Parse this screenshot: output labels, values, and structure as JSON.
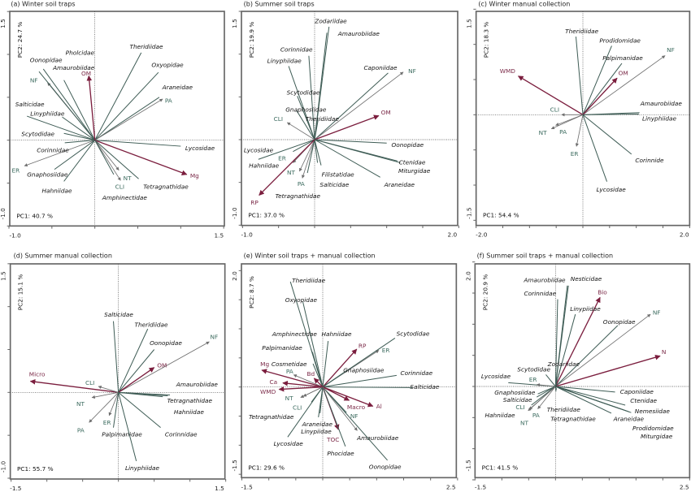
{
  "colors": {
    "species": "#3e5c55",
    "environmental": "#6e6e6e",
    "environmental_label": "#3c6b5f",
    "soil": "#7b1e3e",
    "soil_label": "#7b2a48"
  },
  "chart_data": [
    {
      "type": "biplot",
      "title": "(a) Winter soil traps",
      "pc1_label": "PC1: 40.7 %",
      "pc2_label": "PC2: 24.7 %",
      "xlim": [
        -1.0,
        1.5
      ],
      "ylim": [
        -1.0,
        1.5
      ],
      "x_tick_labels": [
        "-1.0",
        "1.5"
      ],
      "y_tick_labels": [
        "-1.0",
        "1.5"
      ],
      "arrows": [
        {
          "label": "Theridiidae",
          "type": "species",
          "pc1": 0.54,
          "pc2": 1.02
        },
        {
          "label": "Oxyopidae",
          "type": "species",
          "pc1": 0.74,
          "pc2": 0.79
        },
        {
          "label": "Araneidae",
          "type": "species",
          "pc1": 0.75,
          "pc2": 0.5
        },
        {
          "label": "PA",
          "type": "environmental",
          "pc1": 0.79,
          "pc2": 0.48
        },
        {
          "label": "Lycosidae",
          "type": "species",
          "pc1": 1.0,
          "pc2": -0.07
        },
        {
          "label": "Mg",
          "type": "soil",
          "pc1": 1.07,
          "pc2": -0.4
        },
        {
          "label": "Tetragnathidae",
          "type": "species",
          "pc1": 0.51,
          "pc2": -0.45
        },
        {
          "label": "NT",
          "type": "environmental",
          "pc1": 0.3,
          "pc2": -0.47
        },
        {
          "label": "CLI",
          "type": "environmental",
          "pc1": 0.28,
          "pc2": -0.35
        },
        {
          "label": "Amphinectidae",
          "type": "species",
          "pc1": 0.22,
          "pc2": -0.4
        },
        {
          "label": "Hahniidae",
          "type": "species",
          "pc1": -0.36,
          "pc2": -0.48
        },
        {
          "label": "Gnaphosiidae",
          "type": "species",
          "pc1": -0.47,
          "pc2": -0.34
        },
        {
          "label": "ER",
          "type": "environmental",
          "pc1": -0.82,
          "pc2": -0.3
        },
        {
          "label": "Corinnidae",
          "type": "species",
          "pc1": -0.35,
          "pc2": -0.03
        },
        {
          "label": "Scytodidae",
          "type": "species",
          "pc1": -0.36,
          "pc2": 0.08
        },
        {
          "label": "Linyphiidae",
          "type": "species",
          "pc1": -0.38,
          "pc2": 0.27
        },
        {
          "label": "Salticidae",
          "type": "species",
          "pc1": -0.79,
          "pc2": 0.28
        },
        {
          "label": "NF",
          "type": "environmental",
          "pc1": -0.55,
          "pc2": 0.67
        },
        {
          "label": "Oonopidae",
          "type": "species",
          "pc1": -0.65,
          "pc2": 0.8
        },
        {
          "label": "Amaurobiidae",
          "type": "species",
          "pc1": -0.6,
          "pc2": 0.83
        },
        {
          "label": "Pholcidae",
          "type": "species",
          "pc1": -0.36,
          "pc2": 0.7
        },
        {
          "label": "OM",
          "type": "soil",
          "pc1": -0.07,
          "pc2": 0.75
        }
      ]
    },
    {
      "type": "biplot",
      "title": "(b) Summer soil traps",
      "pc1_label": "PC1: 37.0 %",
      "pc2_label": "PC2: 19.9 %",
      "xlim": [
        -1.0,
        2.0
      ],
      "ylim": [
        -1.0,
        1.5
      ],
      "x_tick_labels": [
        "-1.0",
        "2.0"
      ],
      "y_tick_labels": [
        "-1.0",
        "1.5"
      ],
      "arrows": [
        {
          "label": "Zodariidae",
          "type": "species",
          "pc1": 0.2,
          "pc2": 1.32
        },
        {
          "label": "Amaurobiidae",
          "type": "species",
          "pc1": 0.17,
          "pc2": 1.25
        },
        {
          "label": "Corinnidae",
          "type": "species",
          "pc1": -0.08,
          "pc2": 0.98
        },
        {
          "label": "Linyphiidae",
          "type": "species",
          "pc1": -0.36,
          "pc2": 0.86
        },
        {
          "label": "Caponiidae",
          "type": "species",
          "pc1": 1.02,
          "pc2": 0.78
        },
        {
          "label": "NF",
          "type": "environmental",
          "pc1": 1.23,
          "pc2": 0.79
        },
        {
          "label": "Scytodidae",
          "type": "species",
          "pc1": -0.24,
          "pc2": 0.51
        },
        {
          "label": "Gnaphosiidae",
          "type": "species",
          "pc1": -0.25,
          "pc2": 0.34
        },
        {
          "label": "Theridiidae",
          "type": "species",
          "pc1": 0.05,
          "pc2": 0.24
        },
        {
          "label": "CLI",
          "type": "environmental",
          "pc1": -0.38,
          "pc2": 0.2
        },
        {
          "label": "OM",
          "type": "soil",
          "pc1": 0.89,
          "pc2": 0.28
        },
        {
          "label": "Oonopidae",
          "type": "species",
          "pc1": 1.0,
          "pc2": -0.04
        },
        {
          "label": "Ctenidae",
          "type": "species",
          "pc1": 1.19,
          "pc2": -0.27
        },
        {
          "label": "Miturgidae",
          "type": "species",
          "pc1": 1.15,
          "pc2": -0.25
        },
        {
          "label": "Araneidae",
          "type": "species",
          "pc1": 0.91,
          "pc2": -0.44
        },
        {
          "label": "Filistatidae",
          "type": "species",
          "pc1": 0.09,
          "pc2": -0.3
        },
        {
          "label": "Salticidae",
          "type": "species",
          "pc1": 0.04,
          "pc2": -0.27
        },
        {
          "label": "PA",
          "type": "environmental",
          "pc1": -0.17,
          "pc2": -0.45
        },
        {
          "label": "NT",
          "type": "environmental",
          "pc1": -0.21,
          "pc2": -0.37
        },
        {
          "label": "ER",
          "type": "environmental",
          "pc1": -0.3,
          "pc2": -0.27
        },
        {
          "label": "Tetragnathidae",
          "type": "species",
          "pc1": -0.1,
          "pc2": -0.39
        },
        {
          "label": "Hahniidae",
          "type": "species",
          "pc1": -0.78,
          "pc2": -0.23
        },
        {
          "label": "Lycosidae",
          "type": "species",
          "pc1": -0.3,
          "pc2": -0.14
        },
        {
          "label": "RP",
          "type": "soil",
          "pc1": -0.77,
          "pc2": -0.65
        }
      ]
    },
    {
      "type": "biplot",
      "title": "(c) Winter manual collection",
      "pc1_label": "PC1: 54.4 %",
      "pc2_label": "PC2: 18.3 %",
      "xlim": [
        -2.0,
        2.0
      ],
      "ylim": [
        -1.5,
        1.5
      ],
      "x_tick_labels": [
        "-2.0",
        "2.0"
      ],
      "y_tick_labels": [
        "-1.5",
        "1.5"
      ],
      "arrows": [
        {
          "label": "Theridiidae",
          "type": "species",
          "pc1": -0.13,
          "pc2": 1.11
        },
        {
          "label": "Prodidomidae",
          "type": "species",
          "pc1": 0.54,
          "pc2": 0.98
        },
        {
          "label": "Palpimanidae",
          "type": "species",
          "pc1": 0.73,
          "pc2": 0.73
        },
        {
          "label": "NF",
          "type": "environmental",
          "pc1": 1.54,
          "pc2": 0.84
        },
        {
          "label": "OM",
          "type": "soil",
          "pc1": 0.64,
          "pc2": 0.52
        },
        {
          "label": "WMD",
          "type": "soil",
          "pc1": -1.21,
          "pc2": 0.55
        },
        {
          "label": "Amaurobiidae",
          "type": "species",
          "pc1": 1.06,
          "pc2": 0.03
        },
        {
          "label": "Linyphiidae",
          "type": "species",
          "pc1": 1.05,
          "pc2": 0.01
        },
        {
          "label": "CLI",
          "type": "environmental",
          "pc1": -0.4,
          "pc2": 0.0
        },
        {
          "label": "NT",
          "type": "environmental",
          "pc1": -0.59,
          "pc2": -0.2
        },
        {
          "label": "PA",
          "type": "environmental",
          "pc1": -0.51,
          "pc2": -0.15
        },
        {
          "label": "ER",
          "type": "environmental",
          "pc1": -0.12,
          "pc2": -0.45
        },
        {
          "label": "Corinnide",
          "type": "species",
          "pc1": 0.91,
          "pc2": -0.56
        },
        {
          "label": "Lycosidae",
          "type": "species",
          "pc1": 0.45,
          "pc2": -0.95
        }
      ]
    },
    {
      "type": "biplot",
      "title": "(d) Summer manual collection",
      "pc1_label": "PC1: 55.7 %",
      "pc2_label": "PC2: 15.1 %",
      "xlim": [
        -1.5,
        1.5
      ],
      "ylim": [
        -1.0,
        1.5
      ],
      "x_tick_labels": [
        "-1.5",
        "1.5"
      ],
      "y_tick_labels": [
        "-1.0",
        "1.5"
      ],
      "arrows": [
        {
          "label": "Salticidae",
          "type": "species",
          "pc1": -0.07,
          "pc2": 0.83
        },
        {
          "label": "Theridiidae",
          "type": "species",
          "pc1": 0.41,
          "pc2": 0.74
        },
        {
          "label": "Oonopidae",
          "type": "species",
          "pc1": 0.5,
          "pc2": 0.5
        },
        {
          "label": "NF",
          "type": "environmental",
          "pc1": 1.27,
          "pc2": 0.59
        },
        {
          "label": "OM",
          "type": "soil",
          "pc1": 0.5,
          "pc2": 0.29
        },
        {
          "label": "Micro",
          "type": "soil",
          "pc1": -1.23,
          "pc2": 0.13
        },
        {
          "label": "CLI",
          "type": "environmental",
          "pc1": -0.28,
          "pc2": 0.07
        },
        {
          "label": "NT",
          "type": "environmental",
          "pc1": -0.37,
          "pc2": -0.06
        },
        {
          "label": "PA",
          "type": "environmental",
          "pc1": -0.41,
          "pc2": -0.35
        },
        {
          "label": "ER",
          "type": "environmental",
          "pc1": -0.13,
          "pc2": -0.27
        },
        {
          "label": "Palpimanidae",
          "type": "species",
          "pc1": -0.07,
          "pc2": -0.41
        },
        {
          "label": "Linyphiidae",
          "type": "species",
          "pc1": 0.25,
          "pc2": -0.8
        },
        {
          "label": "Corinnidae",
          "type": "species",
          "pc1": 0.59,
          "pc2": -0.41
        },
        {
          "label": "Amaurobiidae",
          "type": "species",
          "pc1": 0.72,
          "pc2": -0.03
        },
        {
          "label": "Tetragnathidae",
          "type": "species",
          "pc1": 0.69,
          "pc2": -0.04
        },
        {
          "label": "Hahniidae",
          "type": "species",
          "pc1": 0.62,
          "pc2": -0.05
        }
      ]
    },
    {
      "type": "biplot",
      "title": "(e) Winter soil traps + manual collection",
      "pc1_label": "PC1: 29.6 %",
      "pc2_label": "PC2: 8.7 %",
      "xlim": [
        -1.5,
        2.5
      ],
      "ylim": [
        -1.5,
        2.0
      ],
      "x_tick_labels": [
        "-1.5",
        "2.5"
      ],
      "y_tick_labels": [
        "-1.5",
        "2.0"
      ],
      "arrows": [
        {
          "label": "Theridiidae",
          "type": "species",
          "pc1": -0.6,
          "pc2": 1.81
        },
        {
          "label": "Oxyopidae",
          "type": "species",
          "pc1": -0.37,
          "pc2": 1.47
        },
        {
          "label": "Amphinectidae",
          "type": "species",
          "pc1": -0.19,
          "pc2": 0.6
        },
        {
          "label": "Hahniidae",
          "type": "species",
          "pc1": 0.1,
          "pc2": 0.79
        },
        {
          "label": "Palpimanidae",
          "type": "species",
          "pc1": -0.22,
          "pc2": 0.66
        },
        {
          "label": "RP",
          "type": "soil",
          "pc1": 0.63,
          "pc2": 0.65
        },
        {
          "label": "ER",
          "type": "environmental",
          "pc1": 1.04,
          "pc2": 0.63
        },
        {
          "label": "Scytodidae",
          "type": "species",
          "pc1": 1.34,
          "pc2": 0.84
        },
        {
          "label": "Gnaphosiidae",
          "type": "species",
          "pc1": 0.44,
          "pc2": 0.28
        },
        {
          "label": "Corinnidae",
          "type": "species",
          "pc1": 1.37,
          "pc2": 0.2
        },
        {
          "label": "Salticidae",
          "type": "species",
          "pc1": 1.66,
          "pc2": -0.01
        },
        {
          "label": "Mg",
          "type": "soil",
          "pc1": -1.13,
          "pc2": 0.29
        },
        {
          "label": "Cosmetidae",
          "type": "species",
          "pc1": -0.18,
          "pc2": 0.4
        },
        {
          "label": "PA",
          "type": "environmental",
          "pc1": -0.54,
          "pc2": 0.21
        },
        {
          "label": "Bd",
          "type": "soil",
          "pc1": -0.16,
          "pc2": 0.15
        },
        {
          "label": "Ca",
          "type": "soil",
          "pc1": -0.74,
          "pc2": 0.07
        },
        {
          "label": "WMD",
          "type": "soil",
          "pc1": -0.81,
          "pc2": -0.04
        },
        {
          "label": "NT",
          "type": "environmental",
          "pc1": -0.41,
          "pc2": -0.18
        },
        {
          "label": "CLI",
          "type": "environmental",
          "pc1": -0.36,
          "pc2": -0.16
        },
        {
          "label": "Tetragnathidae",
          "type": "species",
          "pc1": -0.21,
          "pc2": -0.26
        },
        {
          "label": "Araneidae",
          "type": "species",
          "pc1": -0.05,
          "pc2": -0.45
        },
        {
          "label": "Linypiidae",
          "type": "species",
          "pc1": -0.08,
          "pc2": -0.52
        },
        {
          "label": "Lycosidae",
          "type": "species",
          "pc1": -0.65,
          "pc2": -0.86
        },
        {
          "label": "TOC",
          "type": "soil",
          "pc1": 0.29,
          "pc2": -0.73
        },
        {
          "label": "Phocidae",
          "type": "species",
          "pc1": 0.42,
          "pc2": -1.02
        },
        {
          "label": "Amaurobiidae",
          "type": "species",
          "pc1": 0.44,
          "pc2": -0.44
        },
        {
          "label": "Oonopidae",
          "type": "species",
          "pc1": 1.2,
          "pc2": -1.26
        },
        {
          "label": "Macro",
          "type": "soil",
          "pc1": 0.49,
          "pc2": -0.23
        },
        {
          "label": "Al",
          "type": "soil",
          "pc1": 0.93,
          "pc2": -0.33
        },
        {
          "label": "NF",
          "type": "environmental",
          "pc1": 0.64,
          "pc2": -0.75
        }
      ]
    },
    {
      "type": "biplot",
      "title": "(f) Summer soil traps + manual collection",
      "pc1_label": "PC1: 41.5 %",
      "pc2_label": "PC2: 20.9 %",
      "xlim": [
        -1.5,
        2.5
      ],
      "ylim": [
        -1.5,
        2.0
      ],
      "x_tick_labels": [
        "-1.5",
        "2.5"
      ],
      "y_tick_labels": [
        "-1.5",
        "2.0"
      ],
      "arrows": [
        {
          "label": "Amaurobiidae",
          "type": "species",
          "pc1": 0.22,
          "pc2": 1.62
        },
        {
          "label": "Nesticidae",
          "type": "species",
          "pc1": 0.24,
          "pc2": 1.62
        },
        {
          "label": "Corinnidae",
          "type": "species",
          "pc1": 0.04,
          "pc2": 1.4
        },
        {
          "label": "Bio",
          "type": "soil",
          "pc1": 0.83,
          "pc2": 1.43
        },
        {
          "label": "Linypiidae",
          "type": "species",
          "pc1": 0.37,
          "pc2": 1.16
        },
        {
          "label": "NF",
          "type": "environmental",
          "pc1": 1.77,
          "pc2": 1.16
        },
        {
          "label": "Oonopidae",
          "type": "species",
          "pc1": 1.16,
          "pc2": 0.98
        },
        {
          "label": "N",
          "type": "soil",
          "pc1": 1.95,
          "pc2": 0.49
        },
        {
          "label": "Zodariidae",
          "type": "species",
          "pc1": 0.1,
          "pc2": 0.32
        },
        {
          "label": "Scytodidae",
          "type": "species",
          "pc1": -0.18,
          "pc2": 0.19
        },
        {
          "label": "Lycosidae",
          "type": "species",
          "pc1": -0.88,
          "pc2": 0.06
        },
        {
          "label": "ER",
          "type": "environmental",
          "pc1": -0.35,
          "pc2": 0.03
        },
        {
          "label": "Caponiidae",
          "type": "species",
          "pc1": 1.11,
          "pc2": -0.09
        },
        {
          "label": "Ctenidae",
          "type": "species",
          "pc1": 1.3,
          "pc2": -0.3
        },
        {
          "label": "Nemesiidae",
          "type": "species",
          "pc1": 1.41,
          "pc2": -0.42
        },
        {
          "label": "Prodidomidae",
          "type": "species",
          "pc1": 1.35,
          "pc2": -0.4
        },
        {
          "label": "Miturgidae",
          "type": "species",
          "pc1": 1.38,
          "pc2": -0.41
        },
        {
          "label": "Araneidae",
          "type": "species",
          "pc1": 1.04,
          "pc2": -0.43
        },
        {
          "label": "Gnaphosiidae",
          "type": "species",
          "pc1": -0.33,
          "pc2": -0.12
        },
        {
          "label": "Salticidae",
          "type": "species",
          "pc1": -0.35,
          "pc2": -0.17
        },
        {
          "label": "CLI",
          "type": "environmental",
          "pc1": -0.49,
          "pc2": -0.37
        },
        {
          "label": "Hahniidae",
          "type": "species",
          "pc1": -0.45,
          "pc2": -0.3
        },
        {
          "label": "PA",
          "type": "environmental",
          "pc1": -0.33,
          "pc2": -0.36
        },
        {
          "label": "NT",
          "type": "environmental",
          "pc1": -0.51,
          "pc2": -0.39
        },
        {
          "label": "Theridiidae",
          "type": "species",
          "pc1": 0.02,
          "pc2": -0.05
        },
        {
          "label": "Tetragnathidae",
          "type": "species",
          "pc1": 0.01,
          "pc2": -0.08
        }
      ]
    }
  ]
}
